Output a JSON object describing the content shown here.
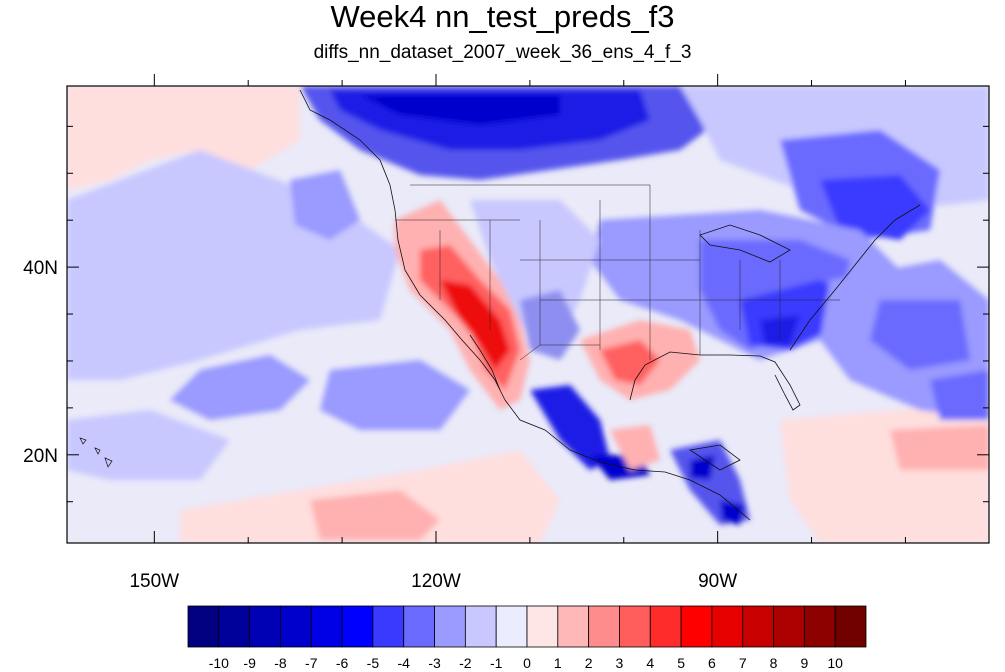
{
  "title": "Week4 nn_test_preds_f3",
  "subtitle": "diffs_nn_dataset_2007_week_36_ens_4_f_3",
  "axes": {
    "x_ticks": [
      {
        "lon": -150,
        "label": "150W"
      },
      {
        "lon": -120,
        "label": "120W"
      },
      {
        "lon": -90,
        "label": "90W"
      }
    ],
    "y_ticks": [
      {
        "lat": 40,
        "label": "40N"
      },
      {
        "lat": 20,
        "label": "20N"
      }
    ]
  },
  "colorbar": {
    "labels": [
      "-10",
      "-9",
      "-8",
      "-7",
      "-6",
      "-5",
      "-4",
      "-3",
      "-2",
      "-1",
      "0",
      "1",
      "2",
      "3",
      "4",
      "5",
      "6",
      "7",
      "8",
      "9",
      "10"
    ],
    "colors": [
      "#000080",
      "#00009a",
      "#0000b4",
      "#0000cd",
      "#0000e6",
      "#0000ff",
      "#3a3aff",
      "#6a6aff",
      "#9a9aff",
      "#c8c8ff",
      "#ececff",
      "#ffe6e6",
      "#ffb8b8",
      "#ff8c8c",
      "#ff5c5c",
      "#ff2c2c",
      "#ff0000",
      "#e60000",
      "#c80000",
      "#aa0000",
      "#8c0000",
      "#700000"
    ]
  },
  "palette": {
    "ocean": "#eaeaf9",
    "light_blue": "#c8c8ff",
    "mid_blue": "#8e8ef0",
    "blue": "#5555ee",
    "dark_blue": "#1a1ae6",
    "light_red": "#ffdede",
    "pink": "#ffb0b0",
    "red": "#ff6060",
    "dark_red": "#ee1010"
  }
}
